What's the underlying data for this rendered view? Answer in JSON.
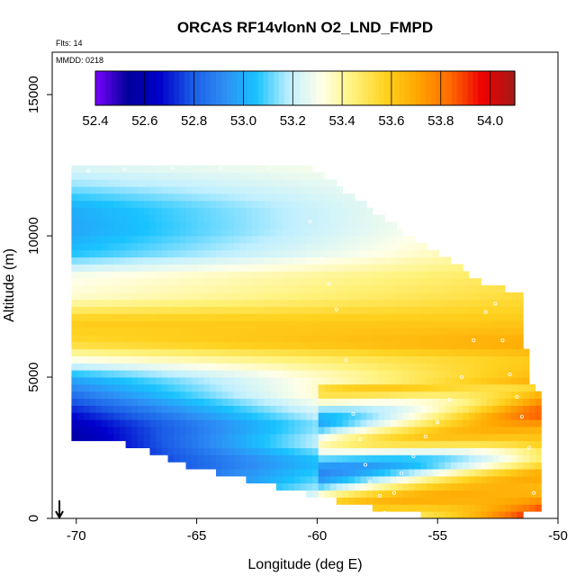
{
  "chart_data": {
    "type": "heatmap",
    "title": "ORCAS RF14vlonN O2_LND_FMPD",
    "subtitle_flights": "Flts: 14",
    "subtitle_date": "MMDD: 0218",
    "xlabel": "Longitude (deg E)",
    "ylabel": "Altitude (m)",
    "xlim": [
      -71,
      -50
    ],
    "ylim": [
      0,
      16500
    ],
    "x_ticks": [
      -70,
      -65,
      -60,
      -55,
      -50
    ],
    "y_ticks": [
      0,
      5000,
      10000,
      15000
    ],
    "x_tick_labels": [
      "-70",
      "-65",
      "-60",
      "-55",
      "-50"
    ],
    "y_tick_labels": [
      "0",
      "5000",
      "10000",
      "15000"
    ],
    "colorbar": {
      "min": 52.4,
      "max": 54.1,
      "tick_values": [
        52.4,
        52.6,
        52.8,
        53.0,
        53.2,
        53.4,
        53.6,
        53.8,
        54.0
      ],
      "tick_labels": [
        "52.4",
        "52.6",
        "52.8",
        "53.0",
        "53.2",
        "53.4",
        "53.6",
        "53.8",
        "54.0"
      ],
      "colors": [
        "#7B00FF",
        "#00009A",
        "#0000CC",
        "#1A5BE6",
        "#2E8EF5",
        "#19C3FF",
        "#BFEFFF",
        "#FFFFE8",
        "#FFF27A",
        "#FFD21F",
        "#FFA500",
        "#FF6A00",
        "#EE0000",
        "#A51A1A"
      ]
    },
    "grid": false,
    "legend_position": "top (horizontal colorbar inside plot)",
    "region_outline_lon": [
      -70.2,
      -60.5,
      -55.5,
      -53.0,
      -51.5,
      -51.2,
      -50.8,
      -50.8,
      -53,
      -55,
      -57,
      -60,
      -65,
      -68,
      -70.2
    ],
    "region_outline_alt": [
      12500,
      12500,
      9500,
      8200,
      7800,
      4700,
      4500,
      350,
      0,
      150,
      400,
      900,
      1900,
      2800,
      3000
    ],
    "layers": [
      {
        "alt": 500,
        "west": 52.7,
        "east": 54.0
      },
      {
        "alt": 1200,
        "west": 52.6,
        "east": 53.6
      },
      {
        "alt": 2000,
        "west": 52.6,
        "east": 53.4
      },
      {
        "alt": 2700,
        "west": 52.55,
        "east": 53.8
      },
      {
        "alt": 3300,
        "west": 52.6,
        "east": 53.6
      },
      {
        "alt": 3800,
        "west": 52.7,
        "east": 53.7
      },
      {
        "alt": 4400,
        "west": 52.85,
        "east": 53.8
      },
      {
        "alt": 5000,
        "west": 53.0,
        "east": 53.65
      },
      {
        "alt": 5600,
        "west": 53.3,
        "east": 53.6
      },
      {
        "alt": 6200,
        "west": 53.55,
        "east": 53.7
      },
      {
        "alt": 7000,
        "west": 53.6,
        "east": 53.6
      },
      {
        "alt": 7800,
        "west": 53.35,
        "east": 53.55
      },
      {
        "alt": 8600,
        "west": 53.3,
        "east": 53.5
      },
      {
        "alt": 9400,
        "west": 53.05,
        "east": 53.45
      },
      {
        "alt": 10200,
        "west": 52.98,
        "east": 53.42
      },
      {
        "alt": 11000,
        "west": 53.0,
        "east": 53.4
      },
      {
        "alt": 11800,
        "west": 53.15,
        "east": 53.35
      },
      {
        "alt": 12500,
        "west": 53.25,
        "east": 53.35
      }
    ],
    "flight_track_lon": [
      -70.3,
      -69.5,
      -68,
      -66,
      -64,
      -62,
      -60.3,
      -59.8,
      -59.5,
      -59.2,
      -58.8,
      -58.5,
      -58.2,
      -58.0,
      -57.8,
      -57.4,
      -57.2,
      -56.8,
      -56.5,
      -56.0,
      -55.5,
      -55.0,
      -54.5,
      -54.0,
      -53.5,
      -53.0,
      -52.6,
      -52.3,
      -52.0,
      -51.7,
      -51.5,
      -51.2,
      -51.0
    ],
    "flight_track_alt": [
      12400,
      12300,
      12350,
      12400,
      12400,
      12400,
      10500,
      9200,
      8300,
      7400,
      5600,
      3700,
      2800,
      1900,
      1300,
      800,
      200,
      900,
      1600,
      2200,
      2900,
      3400,
      4200,
      5000,
      6300,
      7300,
      7600,
      6300,
      5100,
      4300,
      3600,
      2500,
      900
    ],
    "current_position_lon": -70.7
  }
}
